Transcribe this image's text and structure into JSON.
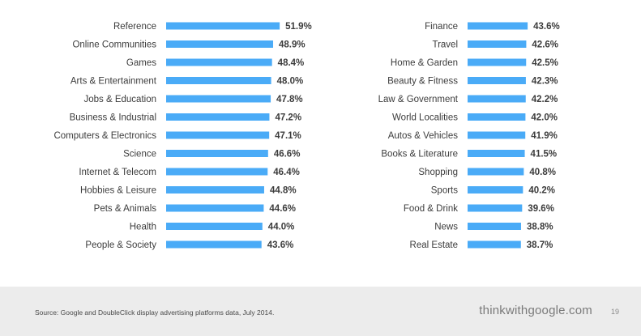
{
  "chart_data": [
    {
      "type": "bar",
      "orientation": "horizontal",
      "title": "",
      "xlabel": "",
      "ylabel": "",
      "unit": "%",
      "xlim": [
        0,
        60
      ],
      "grid": false,
      "legend": "none",
      "bar_color": "#4aabf7",
      "categories": [
        "Reference",
        "Online Communities",
        "Games",
        "Arts & Entertainment",
        "Jobs & Education",
        "Business & Industrial",
        "Computers & Electronics",
        "Science",
        "Internet & Telecom",
        "Hobbies & Leisure",
        "Pets & Animals",
        "Health",
        "People & Society"
      ],
      "values": [
        51.9,
        48.9,
        48.4,
        48.0,
        47.8,
        47.2,
        47.1,
        46.6,
        46.4,
        44.8,
        44.6,
        44.0,
        43.6
      ],
      "value_labels": [
        "51.9%",
        "48.9%",
        "48.4%",
        "48.0%",
        "47.8%",
        "47.2%",
        "47.1%",
        "46.6%",
        "46.4%",
        "44.8%",
        "44.6%",
        "44.0%",
        "43.6%"
      ]
    },
    {
      "type": "bar",
      "orientation": "horizontal",
      "title": "",
      "xlabel": "",
      "ylabel": "",
      "unit": "%",
      "xlim": [
        0,
        60
      ],
      "grid": false,
      "legend": "none",
      "bar_color": "#4aabf7",
      "categories": [
        "Finance",
        "Travel",
        "Home & Garden",
        "Beauty & Fitness",
        "Law & Government",
        "World Localities",
        "Autos & Vehicles",
        "Books & Literature",
        "Shopping",
        "Sports",
        "Food & Drink",
        "News",
        "Real Estate"
      ],
      "values": [
        43.6,
        42.6,
        42.5,
        42.3,
        42.2,
        42.0,
        41.9,
        41.5,
        40.8,
        40.2,
        39.6,
        38.8,
        38.7
      ],
      "value_labels": [
        "43.6%",
        "42.6%",
        "42.5%",
        "42.3%",
        "42.2%",
        "42.0%",
        "41.9%",
        "41.5%",
        "40.8%",
        "40.2%",
        "39.6%",
        "38.8%",
        "38.7%"
      ]
    }
  ],
  "footer": {
    "source": "Source: Google and DoubleClick display advertising platforms data, July 2014.",
    "brand": "thinkwithgoogle.com",
    "page_number": "19"
  }
}
